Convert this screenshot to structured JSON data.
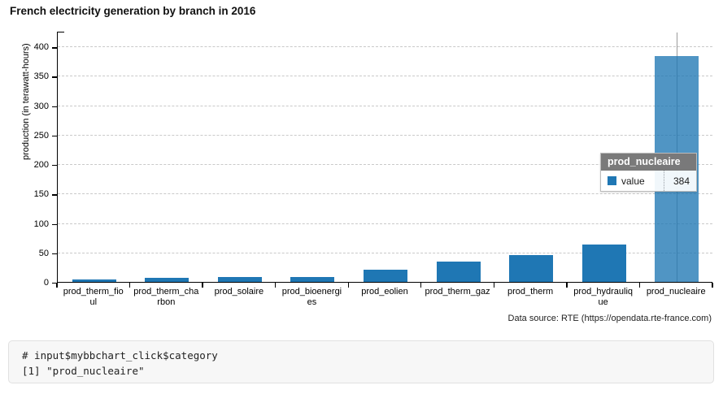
{
  "page": {
    "title": "French electricity generation by branch in 2016",
    "caption": "Data source: RTE (https://opendata.rte-france.com)"
  },
  "chart_data": {
    "type": "bar",
    "title": "French electricity generation by branch in 2016",
    "xlabel": "",
    "ylabel": "production (in terawatt-hours)",
    "ylim": [
      0,
      425
    ],
    "yticks": [
      0,
      50,
      100,
      150,
      200,
      250,
      300,
      350,
      400
    ],
    "grid": "horizontal-dashed",
    "legend_position": "none",
    "categories": [
      "prod_therm_fioul",
      "prod_therm_charbon",
      "prod_solaire",
      "prod_bioenergies",
      "prod_eolien",
      "prod_therm_gaz",
      "prod_therm",
      "prod_hydraulique",
      "prod_nucleaire"
    ],
    "category_label_lines": [
      [
        "prod_therm_fio",
        "ul"
      ],
      [
        "prod_therm_cha",
        "rbon"
      ],
      [
        "prod_solaire"
      ],
      [
        "prod_bioenergi",
        "es"
      ],
      [
        "prod_eolien"
      ],
      [
        "prod_therm_gaz"
      ],
      [
        "prod_therm"
      ],
      [
        "prod_hydrauliq",
        "ue"
      ],
      [
        "prod_nucleaire"
      ]
    ],
    "series": [
      {
        "name": "value",
        "values": [
          4,
          7,
          8,
          8,
          21,
          35,
          46,
          64,
          384
        ]
      }
    ],
    "highlighted_index": 8,
    "colors": {
      "bar": "#1f77b4",
      "bar_highlight_rgba": "rgba(31,119,180,0.78)",
      "grid": "#c9c9c9",
      "crosshair": "#9a9a9a"
    }
  },
  "tooltip": {
    "title": "prod_nucleaire",
    "series_label": "value",
    "value": "384",
    "swatch_color": "#1f77b4"
  },
  "console": {
    "line1": "# input$mybbchart_click$category",
    "line2": "[1] \"prod_nucleaire\""
  }
}
